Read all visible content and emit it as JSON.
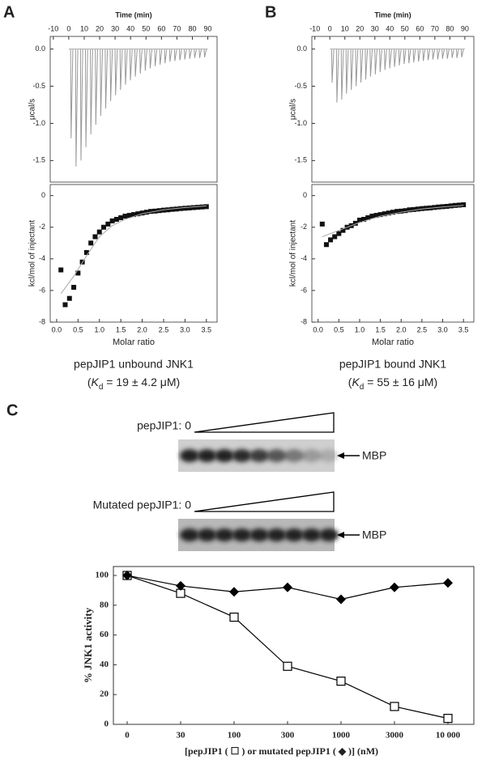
{
  "chart_data": [
    {
      "type": "spike",
      "panel": "A",
      "x_label": "Time (min)",
      "y_label": "μcal/s",
      "color": "#999999",
      "x": [
        1.5,
        4.7,
        7.9,
        11.1,
        14.3,
        17.5,
        20.7,
        23.9,
        27.1,
        30.3,
        33.5,
        36.7,
        39.9,
        43.1,
        46.3,
        49.5,
        52.7,
        55.9,
        59.1,
        62.3,
        65.5,
        68.7,
        71.9,
        75.1,
        78.3,
        81.5,
        84.7,
        87.9
      ],
      "values": [
        -1.2,
        -1.58,
        -1.5,
        -1.32,
        -1.15,
        -1.02,
        -0.9,
        -0.8,
        -0.7,
        -0.62,
        -0.55,
        -0.48,
        -0.42,
        -0.37,
        -0.33,
        -0.29,
        -0.26,
        -0.23,
        -0.21,
        -0.19,
        -0.17,
        -0.16,
        -0.15,
        -0.14,
        -0.13,
        -0.12,
        -0.12,
        -0.11
      ],
      "xlim": [
        -12,
        96
      ],
      "xticks": [
        -10,
        0,
        10,
        20,
        30,
        40,
        50,
        60,
        70,
        80,
        90
      ],
      "ylim": [
        -1.79,
        0.17
      ],
      "yticks": [
        {
          "value": 0,
          "label": "0.0"
        },
        -0.5,
        {
          "value": -1,
          "label": "-1.0"
        },
        -1.5
      ]
    },
    {
      "type": "scatter",
      "x_label": "Molar ratio",
      "y_label": "kcl/mol of injectant",
      "caption": [
        "pepJIP1 unbound JNK1",
        "(",
        "K",
        "d",
        " = 19 ± 4.2 μM)"
      ],
      "series": [
        {
          "marker": "square",
          "color": "#111111",
          "x": [
            0.1,
            0.2,
            0.3,
            0.4,
            0.5,
            0.6,
            0.7,
            0.8,
            0.9,
            1.0,
            1.1,
            1.2,
            1.3,
            1.4,
            1.5,
            1.6,
            1.7,
            1.8,
            1.9,
            2.0,
            2.1,
            2.2,
            2.3,
            2.4,
            2.5,
            2.6,
            2.7,
            2.8,
            2.9,
            3.0,
            3.1,
            3.2,
            3.3,
            3.4,
            3.5
          ],
          "values": [
            -4.7,
            -6.9,
            -6.5,
            -5.8,
            -4.9,
            -4.2,
            -3.6,
            -3.0,
            -2.6,
            -2.3,
            -2.0,
            -1.8,
            -1.6,
            -1.5,
            -1.4,
            -1.3,
            -1.25,
            -1.2,
            -1.15,
            -1.1,
            -1.05,
            -1.0,
            -0.98,
            -0.95,
            -0.92,
            -0.9,
            -0.87,
            -0.85,
            -0.82,
            -0.8,
            -0.78,
            -0.76,
            -0.74,
            -0.72,
            -0.7
          ]
        },
        {
          "marker": "line",
          "color": "#aaaaaa",
          "x": [
            0.1,
            0.4,
            0.7,
            1.0,
            1.3,
            1.6,
            2.0,
            2.5,
            3.0,
            3.5
          ],
          "values": [
            -6.2,
            -5.1,
            -3.8,
            -2.6,
            -1.9,
            -1.5,
            -1.15,
            -0.9,
            -0.75,
            -0.65
          ]
        }
      ],
      "xlim": [
        -0.15,
        3.75
      ],
      "xticks": [
        {
          "value": 0,
          "label": "0.0"
        },
        0.5,
        {
          "value": 1,
          "label": "1.0"
        },
        1.5,
        {
          "value": 2,
          "label": "2.0"
        },
        2.5,
        {
          "value": 3,
          "label": "3.0"
        },
        3.5
      ],
      "ylim": [
        -8,
        0.7
      ],
      "yticks": [
        0,
        -2,
        -4,
        -6,
        -8
      ]
    },
    {
      "type": "spike",
      "panel": "B",
      "x_label": "Time (min)",
      "y_label": "μcal/s",
      "color": "#999999",
      "x": [
        1.5,
        4.7,
        7.9,
        11.1,
        14.3,
        17.5,
        20.7,
        23.9,
        27.1,
        30.3,
        33.5,
        36.7,
        39.9,
        43.1,
        46.3,
        49.5,
        52.7,
        55.9,
        59.1,
        62.3,
        65.5,
        68.7,
        71.9,
        75.1,
        78.3,
        81.5,
        84.7,
        87.9
      ],
      "values": [
        -0.45,
        -0.72,
        -0.68,
        -0.6,
        -0.55,
        -0.5,
        -0.45,
        -0.41,
        -0.37,
        -0.34,
        -0.31,
        -0.28,
        -0.26,
        -0.24,
        -0.22,
        -0.2,
        -0.19,
        -0.18,
        -0.17,
        -0.16,
        -0.15,
        -0.14,
        -0.14,
        -0.13,
        -0.13,
        -0.12,
        -0.12,
        -0.11
      ],
      "xlim": [
        -12,
        96
      ],
      "xticks": [
        -10,
        0,
        10,
        20,
        30,
        40,
        50,
        60,
        70,
        80,
        90
      ],
      "ylim": [
        -1.79,
        0.17
      ],
      "yticks": [
        {
          "value": 0,
          "label": "0.0"
        },
        -0.5,
        {
          "value": -1,
          "label": "-1.0"
        },
        -1.5
      ]
    },
    {
      "type": "scatter",
      "x_label": "Molar ratio",
      "y_label": "kcl/mol of injectant",
      "caption": [
        "pepJIP1 bound JNK1",
        "(",
        "K",
        "d",
        " = 55 ± 16 μM)"
      ],
      "series": [
        {
          "marker": "square",
          "color": "#111111",
          "x": [
            0.1,
            0.2,
            0.3,
            0.4,
            0.5,
            0.6,
            0.7,
            0.8,
            0.9,
            1.0,
            1.1,
            1.2,
            1.3,
            1.4,
            1.5,
            1.6,
            1.7,
            1.8,
            1.9,
            2.0,
            2.1,
            2.2,
            2.3,
            2.4,
            2.5,
            2.6,
            2.7,
            2.8,
            2.9,
            3.0,
            3.1,
            3.2,
            3.3,
            3.4,
            3.5
          ],
          "values": [
            -1.8,
            -3.1,
            -2.8,
            -2.6,
            -2.4,
            -2.2,
            -2.0,
            -1.9,
            -1.75,
            -1.55,
            -1.5,
            -1.4,
            -1.3,
            -1.25,
            -1.2,
            -1.15,
            -1.1,
            -1.05,
            -1.0,
            -0.98,
            -0.95,
            -0.9,
            -0.88,
            -0.85,
            -0.82,
            -0.8,
            -0.78,
            -0.75,
            -0.72,
            -0.7,
            -0.68,
            -0.65,
            -0.62,
            -0.6,
            -0.58
          ]
        },
        {
          "marker": "line",
          "color": "#aaaaaa",
          "x": [
            0.1,
            0.5,
            1.0,
            1.5,
            2.0,
            2.5,
            3.0,
            3.5
          ],
          "values": [
            -2.6,
            -2.2,
            -1.7,
            -1.3,
            -1.05,
            -0.85,
            -0.72,
            -0.62
          ]
        }
      ],
      "xlim": [
        -0.15,
        3.75
      ],
      "xticks": [
        {
          "value": 0,
          "label": "0.0"
        },
        0.5,
        {
          "value": 1,
          "label": "1.0"
        },
        1.5,
        {
          "value": 2,
          "label": "2.0"
        },
        2.5,
        {
          "value": 3,
          "label": "3.0"
        },
        3.5
      ],
      "ylim": [
        -8,
        0.7
      ],
      "yticks": [
        0,
        -2,
        -4,
        -6,
        -8
      ]
    },
    {
      "type": "line",
      "panel": "C",
      "x_label": "[pepJIP1 ( ☐ ) or mutated pepJIP1 ( ◆ )] (nM)",
      "y_label": "% JNK1 activity",
      "categories": [
        "0",
        "30",
        "100",
        "300",
        "1000",
        "3000",
        "10 000"
      ],
      "series": [
        {
          "marker": "square-open",
          "color": "#000000",
          "values": [
            100,
            88,
            72,
            39,
            29,
            12,
            4
          ]
        },
        {
          "marker": "diamond",
          "color": "#000000",
          "values": [
            100,
            93,
            89,
            92,
            84,
            92,
            95
          ]
        }
      ],
      "ylim": [
        0,
        106
      ],
      "yticks": [
        0,
        20,
        40,
        60,
        80,
        100
      ]
    }
  ],
  "gels": [
    {
      "label": "pepJIP1: 0",
      "marker": "MBP"
    },
    {
      "label": "Mutated pepJIP1: 0",
      "marker": "MBP"
    }
  ]
}
